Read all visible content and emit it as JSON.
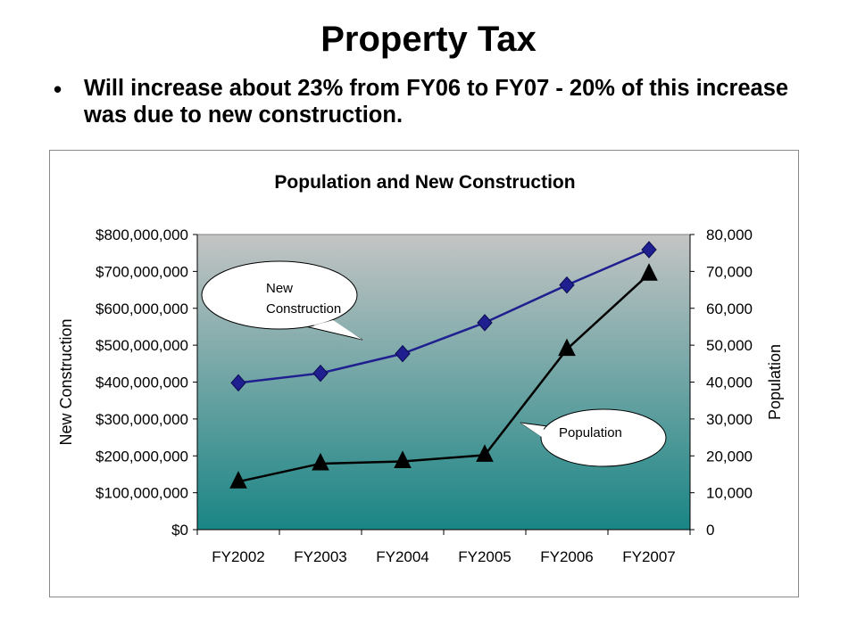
{
  "slide": {
    "title": "Property Tax",
    "bullet": "Will increase about 23% from FY06 to FY07 - 20% of this increase was due to new construction."
  },
  "chart_data": {
    "type": "line",
    "title": "Population and New Construction",
    "categories": [
      "FY2002",
      "FY2003",
      "FY2004",
      "FY2005",
      "FY2006",
      "FY2007"
    ],
    "series": [
      {
        "name": "New Construction",
        "axis": "left",
        "marker": "diamond",
        "color": "#1f1f8f",
        "values": [
          398000000,
          424000000,
          477000000,
          561000000,
          663000000,
          759000000
        ]
      },
      {
        "name": "Population",
        "axis": "right",
        "marker": "triangle",
        "color": "#000000",
        "values": [
          13000,
          17900,
          18500,
          20200,
          48900,
          69300
        ]
      }
    ],
    "y_left": {
      "label": "New Construction",
      "min": 0,
      "max": 800000000,
      "step": 100000000,
      "tick_labels": [
        "$0",
        "$100,000,000",
        "$200,000,000",
        "$300,000,000",
        "$400,000,000",
        "$500,000,000",
        "$600,000,000",
        "$700,000,000",
        "$800,000,000"
      ]
    },
    "y_right": {
      "label": "Population",
      "min": 0,
      "max": 80000,
      "step": 10000,
      "tick_labels": [
        "0",
        "10,000",
        "20,000",
        "30,000",
        "40,000",
        "50,000",
        "60,000",
        "70,000",
        "80,000"
      ]
    },
    "annotations": [
      {
        "series": "New Construction",
        "lines": [
          "New",
          "Construction"
        ]
      },
      {
        "series": "Population",
        "lines": [
          "Population"
        ]
      }
    ],
    "plot_gradient": [
      "#c4c4c4",
      "#1a8585"
    ],
    "grid": false
  }
}
